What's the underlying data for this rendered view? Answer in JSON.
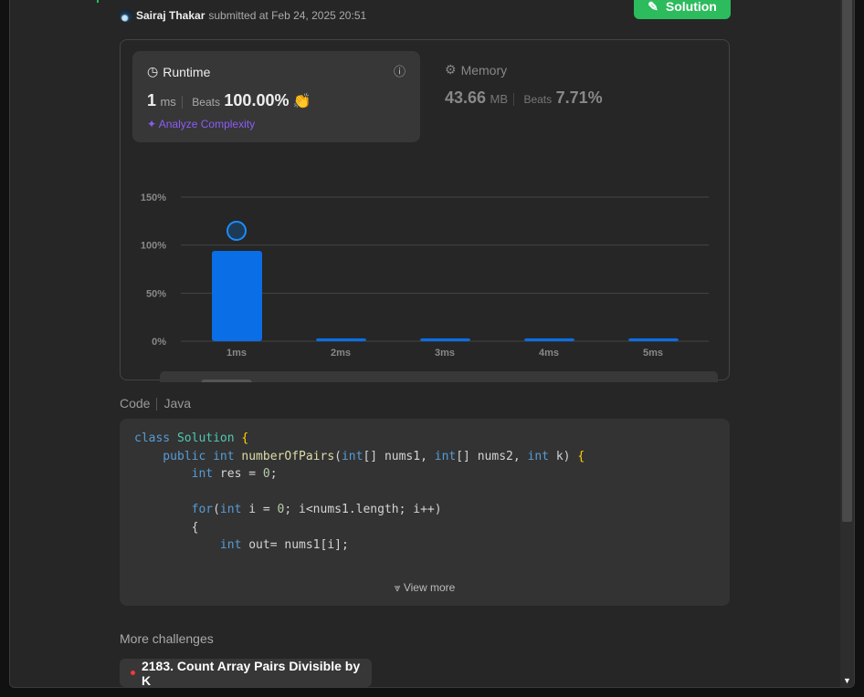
{
  "submission": {
    "author": "Sairaj Thakar",
    "submitted_text": "submitted at Feb 24, 2025 20:51",
    "solution_button": "Solution"
  },
  "runtime": {
    "label": "Runtime",
    "value": "1",
    "unit": "ms",
    "beats_label": "Beats",
    "beats": "100.00%",
    "analyze": "Analyze Complexity"
  },
  "memory": {
    "label": "Memory",
    "value": "43.66",
    "unit": "MB",
    "beats_label": "Beats",
    "beats": "7.71%"
  },
  "chart_data": {
    "type": "bar",
    "categories": [
      "1ms",
      "2ms",
      "3ms",
      "4ms",
      "5ms"
    ],
    "values": [
      94,
      3,
      3,
      3,
      3
    ],
    "ylim": [
      0,
      150
    ],
    "yticks": [
      "0%",
      "50%",
      "100%",
      "150%"
    ],
    "grid": true,
    "bar_color": "#0a6ee6",
    "highlight": "1ms"
  },
  "code": {
    "label": "Code",
    "language": "Java",
    "view_more": "View more",
    "lines": [
      [
        [
          "class ",
          "kw"
        ],
        [
          "Solution ",
          "ty"
        ],
        [
          "{",
          "br"
        ]
      ],
      [
        [
          "    public int ",
          "kw"
        ],
        [
          "numberOfPairs",
          "fn"
        ],
        [
          "(",
          ""
        ],
        [
          "int",
          "kw"
        ],
        [
          "[] nums1, ",
          ""
        ],
        [
          "int",
          "kw"
        ],
        [
          "[] nums2, ",
          ""
        ],
        [
          "int",
          "kw"
        ],
        [
          " k) ",
          ""
        ],
        [
          "{",
          "br"
        ]
      ],
      [
        [
          "        int",
          "kw"
        ],
        [
          " res = ",
          ""
        ],
        [
          "0",
          "num"
        ],
        [
          ";",
          ""
        ]
      ],
      [
        [
          "",
          ""
        ]
      ],
      [
        [
          "        for",
          "kw"
        ],
        [
          "(",
          ""
        ],
        [
          "int",
          "kw"
        ],
        [
          " i = ",
          ""
        ],
        [
          "0",
          "num"
        ],
        [
          "; i<nums1.length; i++)",
          ""
        ]
      ],
      [
        [
          "        {",
          ""
        ]
      ],
      [
        [
          "            int",
          "kw"
        ],
        [
          " out= nums1[i];",
          ""
        ]
      ]
    ]
  },
  "more": {
    "label": "More challenges",
    "items": [
      {
        "title": "2183. Count Array Pairs Divisible by K",
        "difficulty_color": "#f63737"
      }
    ]
  }
}
